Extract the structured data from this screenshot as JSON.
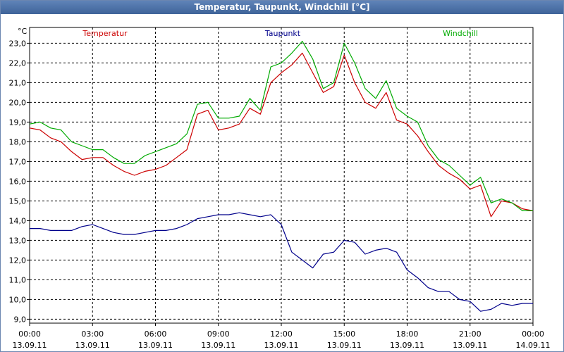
{
  "window": {
    "title": "Temperatur, Taupunkt, Windchill [°C]"
  },
  "chart_data": {
    "type": "line",
    "title": "Temperatur, Taupunkt, Windchill [°C]",
    "ylabel": "°C",
    "xlabel": "",
    "ylim": [
      8.8,
      23.8
    ],
    "xlim": [
      0,
      24
    ],
    "grid": true,
    "yticks": [
      "9,0",
      "10,0",
      "11,0",
      "12,0",
      "13,0",
      "14,0",
      "15,0",
      "16,0",
      "17,0",
      "18,0",
      "19,0",
      "20,0",
      "21,0",
      "22,0",
      "23,0"
    ],
    "xticks": [
      {
        "time": "00:00",
        "date": "13.09.11"
      },
      {
        "time": "03:00",
        "date": "13.09.11"
      },
      {
        "time": "06:00",
        "date": "13.09.11"
      },
      {
        "time": "09:00",
        "date": "13.09.11"
      },
      {
        "time": "12:00",
        "date": "13.09.11"
      },
      {
        "time": "15:00",
        "date": "13.09.11"
      },
      {
        "time": "18:00",
        "date": "13.09.11"
      },
      {
        "time": "21:00",
        "date": "13.09.11"
      },
      {
        "time": "00:00",
        "date": "14.09.11"
      }
    ],
    "series": [
      {
        "name": "Temperatur",
        "color": "#cc0000",
        "x": [
          0,
          0.5,
          1,
          1.5,
          2,
          2.5,
          3,
          3.5,
          4,
          4.5,
          5,
          5.5,
          6,
          6.5,
          7,
          7.5,
          8,
          8.5,
          9,
          9.5,
          10,
          10.5,
          11,
          11.5,
          12,
          12.5,
          13,
          13.5,
          14,
          14.5,
          15,
          15.5,
          16,
          16.5,
          17,
          17.5,
          18,
          18.5,
          19,
          19.5,
          20,
          20.5,
          21,
          21.5,
          22,
          22.5,
          23,
          23.5,
          24
        ],
        "values": [
          18.7,
          18.6,
          18.2,
          18.0,
          17.5,
          17.1,
          17.2,
          17.2,
          16.8,
          16.5,
          16.3,
          16.5,
          16.6,
          16.8,
          17.2,
          17.6,
          19.4,
          19.6,
          18.6,
          18.7,
          18.9,
          19.7,
          19.4,
          21.0,
          21.5,
          21.9,
          22.5,
          21.5,
          20.5,
          20.8,
          22.4,
          21.0,
          20.0,
          19.7,
          20.5,
          19.1,
          18.9,
          18.3,
          17.5,
          16.8,
          16.4,
          16.1,
          15.6,
          15.8,
          14.2,
          15.0,
          14.9,
          14.6,
          14.5
        ]
      },
      {
        "name": "Taupunkt",
        "color": "#00008b",
        "x": [
          0,
          0.5,
          1,
          1.5,
          2,
          2.5,
          3,
          3.5,
          4,
          4.5,
          5,
          5.5,
          6,
          6.5,
          7,
          7.5,
          8,
          8.5,
          9,
          9.5,
          10,
          10.5,
          11,
          11.5,
          12,
          12.5,
          13,
          13.5,
          14,
          14.5,
          15,
          15.5,
          16,
          16.5,
          17,
          17.5,
          18,
          18.5,
          19,
          19.5,
          20,
          20.5,
          21,
          21.5,
          22,
          22.5,
          23,
          23.5,
          24
        ],
        "values": [
          13.6,
          13.6,
          13.5,
          13.5,
          13.5,
          13.7,
          13.8,
          13.6,
          13.4,
          13.3,
          13.3,
          13.4,
          13.5,
          13.5,
          13.6,
          13.8,
          14.1,
          14.2,
          14.3,
          14.3,
          14.4,
          14.3,
          14.2,
          14.3,
          13.8,
          12.4,
          12.0,
          11.6,
          12.3,
          12.4,
          13.0,
          12.9,
          12.3,
          12.5,
          12.6,
          12.4,
          11.5,
          11.1,
          10.6,
          10.4,
          10.4,
          10.0,
          9.9,
          9.4,
          9.5,
          9.8,
          9.7,
          9.8,
          9.8
        ]
      },
      {
        "name": "Windchill",
        "color": "#00aa00",
        "x": [
          0,
          0.5,
          1,
          1.5,
          2,
          2.5,
          3,
          3.5,
          4,
          4.5,
          5,
          5.5,
          6,
          6.5,
          7,
          7.5,
          8,
          8.5,
          9,
          9.5,
          10,
          10.5,
          11,
          11.5,
          12,
          12.5,
          13,
          13.5,
          14,
          14.5,
          15,
          15.5,
          16,
          16.5,
          17,
          17.5,
          18,
          18.5,
          19,
          19.5,
          20,
          20.5,
          21,
          21.5,
          22,
          22.5,
          23,
          23.5,
          24
        ],
        "values": [
          18.9,
          19.0,
          18.7,
          18.6,
          18.0,
          17.8,
          17.6,
          17.6,
          17.2,
          16.9,
          16.9,
          17.3,
          17.5,
          17.7,
          17.9,
          18.4,
          19.9,
          20.0,
          19.2,
          19.2,
          19.3,
          20.2,
          19.6,
          21.8,
          22.0,
          22.5,
          23.1,
          22.2,
          20.7,
          21.0,
          23.0,
          22.0,
          20.7,
          20.2,
          21.1,
          19.7,
          19.3,
          19.0,
          17.8,
          17.1,
          16.8,
          16.3,
          15.8,
          16.2,
          14.9,
          15.1,
          14.9,
          14.5,
          14.5
        ]
      }
    ]
  }
}
